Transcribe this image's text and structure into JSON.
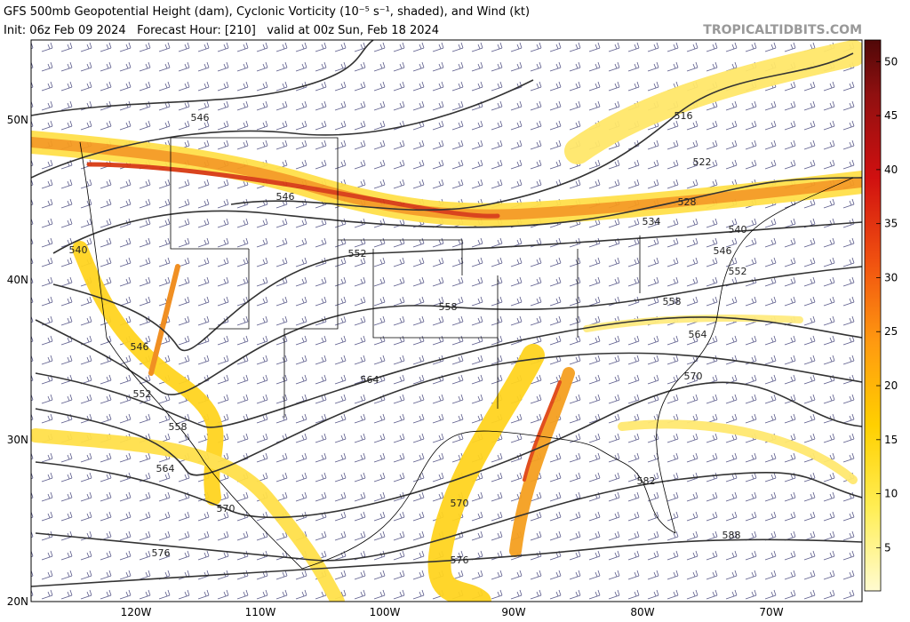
{
  "header": {
    "title": "GFS 500mb Geopotential Height (dam), Cyclonic Vorticity (10⁻⁵ s⁻¹, shaded), and Wind (kt)",
    "subtitle": "Init: 06z Feb 09 2024   Forecast Hour: [210]   valid at 00z Sun, Feb 18 2024",
    "source": "TROPICALTIDBITS.COM"
  },
  "map": {
    "lat_labels": [
      "50N",
      "40N",
      "30N",
      "20N"
    ],
    "lon_labels": [
      "120W",
      "110W",
      "100W",
      "90W",
      "80W",
      "70W"
    ],
    "contour_labels": [
      "546",
      "516",
      "522",
      "528",
      "534",
      "540",
      "546",
      "540",
      "552",
      "546",
      "552",
      "558",
      "558",
      "564",
      "546",
      "552",
      "564",
      "570",
      "558",
      "564",
      "582",
      "570",
      "570",
      "588",
      "576",
      "576"
    ]
  },
  "colorbar": {
    "ticks": [
      5,
      10,
      15,
      20,
      25,
      30,
      35,
      40,
      45,
      50
    ],
    "range": [
      1,
      52
    ]
  }
}
